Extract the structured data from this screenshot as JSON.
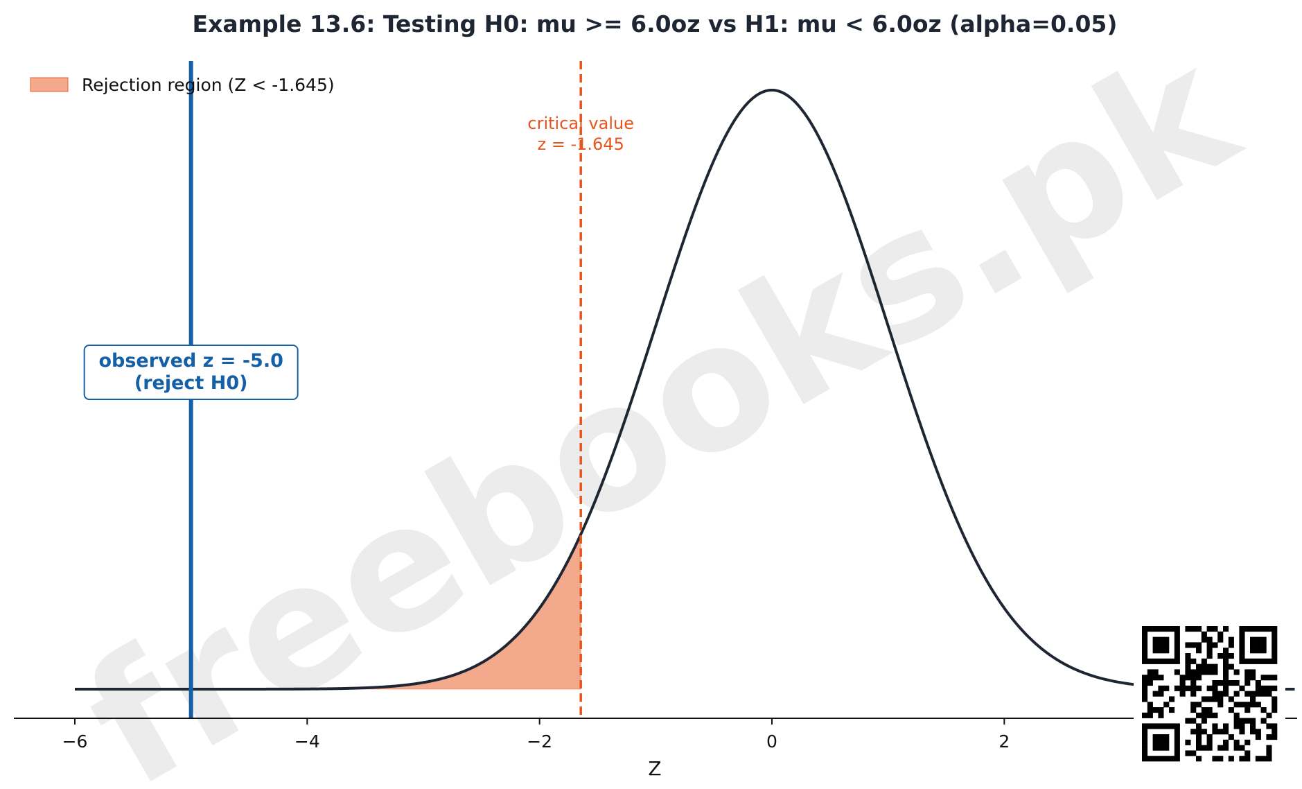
{
  "chart_data": {
    "type": "area",
    "title": "Example 13.6: Testing H0: mu >= 6.0oz vs H1: mu < 6.0oz  (alpha=0.05)",
    "xlabel": "Z",
    "ylabel": "",
    "xlim": [
      -6.5,
      4.5
    ],
    "ylim": [
      -0.02,
      0.42
    ],
    "x_ticks": [
      -6,
      -4,
      -2,
      0,
      2
    ],
    "x_tick_labels": [
      "−6",
      "−4",
      "−2",
      "0",
      "2"
    ],
    "series": [
      {
        "role": "density-curve",
        "distribution": "standard normal",
        "x_range": [
          -6,
          4.5
        ],
        "color": "#1f2633"
      }
    ],
    "shaded_region": {
      "from": -6,
      "to": -1.645,
      "color": "#f3a98c",
      "legend_label": "Rejection region (Z < -1.645)"
    },
    "critical_value": {
      "x": -1.645,
      "label_line1": "critical value",
      "label_line2": "z = -1.645",
      "color": "#e8541e"
    },
    "observed": {
      "x": -5.0,
      "label_line1": "observed z = -5.0",
      "label_line2": "(reject H0)",
      "color": "#1460a8"
    },
    "legend": {
      "placement": "top-left"
    },
    "grid": false
  },
  "watermark": {
    "text": "freebooks.pk",
    "color": "#d4d4d4"
  },
  "qr_code": {
    "icon": "qr-code-icon"
  }
}
